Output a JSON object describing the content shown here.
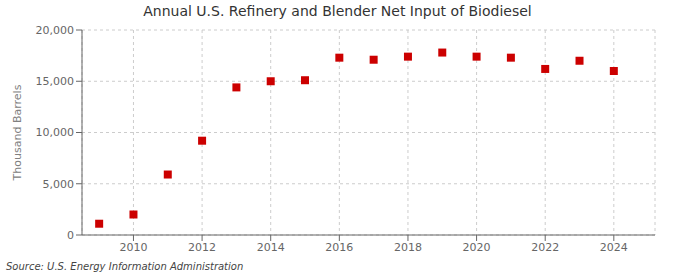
{
  "chart_data": {
    "type": "scatter",
    "title": "Annual U.S. Refinery and Blender Net Input of Biodiesel",
    "ylabel": "Thousand Barrels",
    "source": "Source: U.S. Energy Information Administration",
    "x": [
      2009,
      2010,
      2011,
      2012,
      2013,
      2014,
      2015,
      2016,
      2017,
      2018,
      2019,
      2020,
      2021,
      2022,
      2023,
      2024
    ],
    "values": [
      1100,
      2000,
      5900,
      9200,
      14400,
      15000,
      15100,
      17300,
      17100,
      17400,
      17800,
      17400,
      17300,
      16200,
      17000,
      16000
    ],
    "color": "#cc0000",
    "marker": "square",
    "xlim": [
      2008.5,
      2025.2
    ],
    "xticks": [
      2010,
      2012,
      2014,
      2016,
      2018,
      2020,
      2022,
      2024
    ],
    "ylim": [
      0,
      20000
    ],
    "yticks": [
      0,
      {
        "value": 5000,
        "label": "5,000"
      },
      {
        "value": 10000,
        "label": "10,000"
      },
      {
        "value": 15000,
        "label": "15,000"
      },
      {
        "value": 20000,
        "label": "20,000"
      }
    ],
    "grid": true
  }
}
